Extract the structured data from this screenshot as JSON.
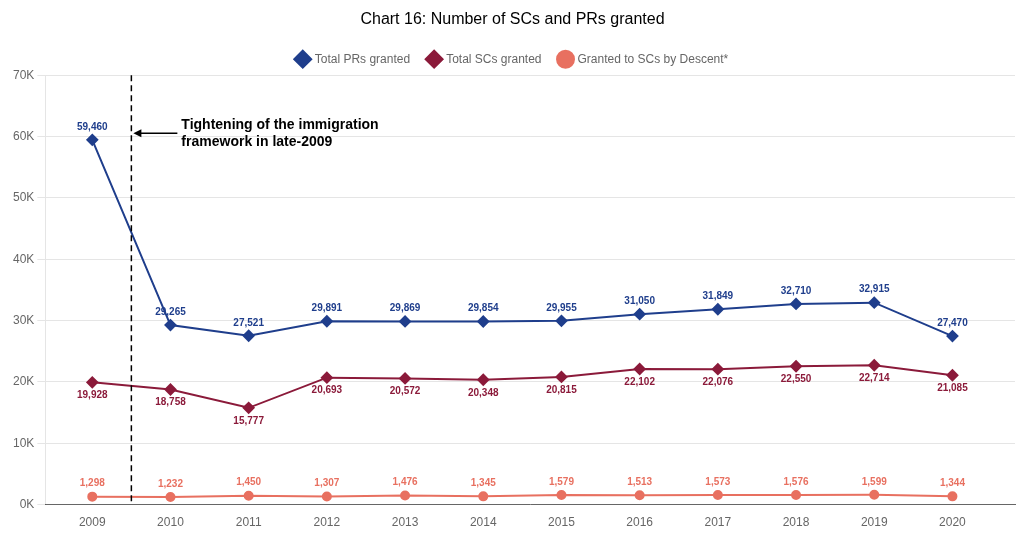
{
  "chart_data": {
    "type": "line",
    "title": "Chart 16: Number of SCs and PRs granted",
    "x": [
      2009,
      2010,
      2011,
      2012,
      2013,
      2014,
      2015,
      2016,
      2017,
      2018,
      2019,
      2020
    ],
    "series": [
      {
        "name": "Total PRs granted",
        "color": "#1f3e8c",
        "marker": "diamond",
        "values": [
          59460,
          29265,
          27521,
          29891,
          29869,
          29854,
          29955,
          31050,
          31849,
          32710,
          32915,
          27470
        ],
        "value_labels": [
          "59,460",
          "29,265",
          "27,521",
          "29,891",
          "29,869",
          "29,854",
          "29,955",
          "31,050",
          "31,849",
          "32,710",
          "32,915",
          "27,470"
        ]
      },
      {
        "name": "Total SCs granted",
        "color": "#8b1a3a",
        "marker": "diamond",
        "values": [
          19928,
          18758,
          15777,
          20693,
          20572,
          20348,
          20815,
          22102,
          22076,
          22550,
          22714,
          21085
        ],
        "value_labels": [
          "19,928",
          "18,758",
          "15,777",
          "20,693",
          "20,572",
          "20,348",
          "20,815",
          "22,102",
          "22,076",
          "22,550",
          "22,714",
          "21,085"
        ]
      },
      {
        "name": "Granted to SCs by Descent*",
        "color": "#e87060",
        "marker": "circle",
        "values": [
          1298,
          1232,
          1450,
          1307,
          1476,
          1345,
          1579,
          1513,
          1573,
          1576,
          1599,
          1344
        ],
        "value_labels": [
          "1,298",
          "1,232",
          "1,450",
          "1,307",
          "1,476",
          "1,345",
          "1,579",
          "1,513",
          "1,573",
          "1,576",
          "1,599",
          "1,344"
        ]
      }
    ],
    "annotation": {
      "text": "Tightening of the immigration\nframework in late-2009",
      "x": 2009.5,
      "line_style": "dashed"
    },
    "xlim": [
      2008.4,
      2020.8
    ],
    "xticks": [
      2009,
      2010,
      2011,
      2012,
      2013,
      2014,
      2015,
      2016,
      2017,
      2018,
      2019,
      2020
    ],
    "ylim": [
      0,
      70000
    ],
    "yticks": [
      {
        "value": 0,
        "label": "0K"
      },
      {
        "value": 10000,
        "label": "10K"
      },
      {
        "value": 20000,
        "label": "20K"
      },
      {
        "value": 30000,
        "label": "30K"
      },
      {
        "value": 40000,
        "label": "40K"
      },
      {
        "value": 50000,
        "label": "50K"
      },
      {
        "value": 60000,
        "label": "60K"
      },
      {
        "value": 70000,
        "label": "70K"
      }
    ],
    "grid": "y",
    "legend": "top",
    "data_labels": true
  }
}
